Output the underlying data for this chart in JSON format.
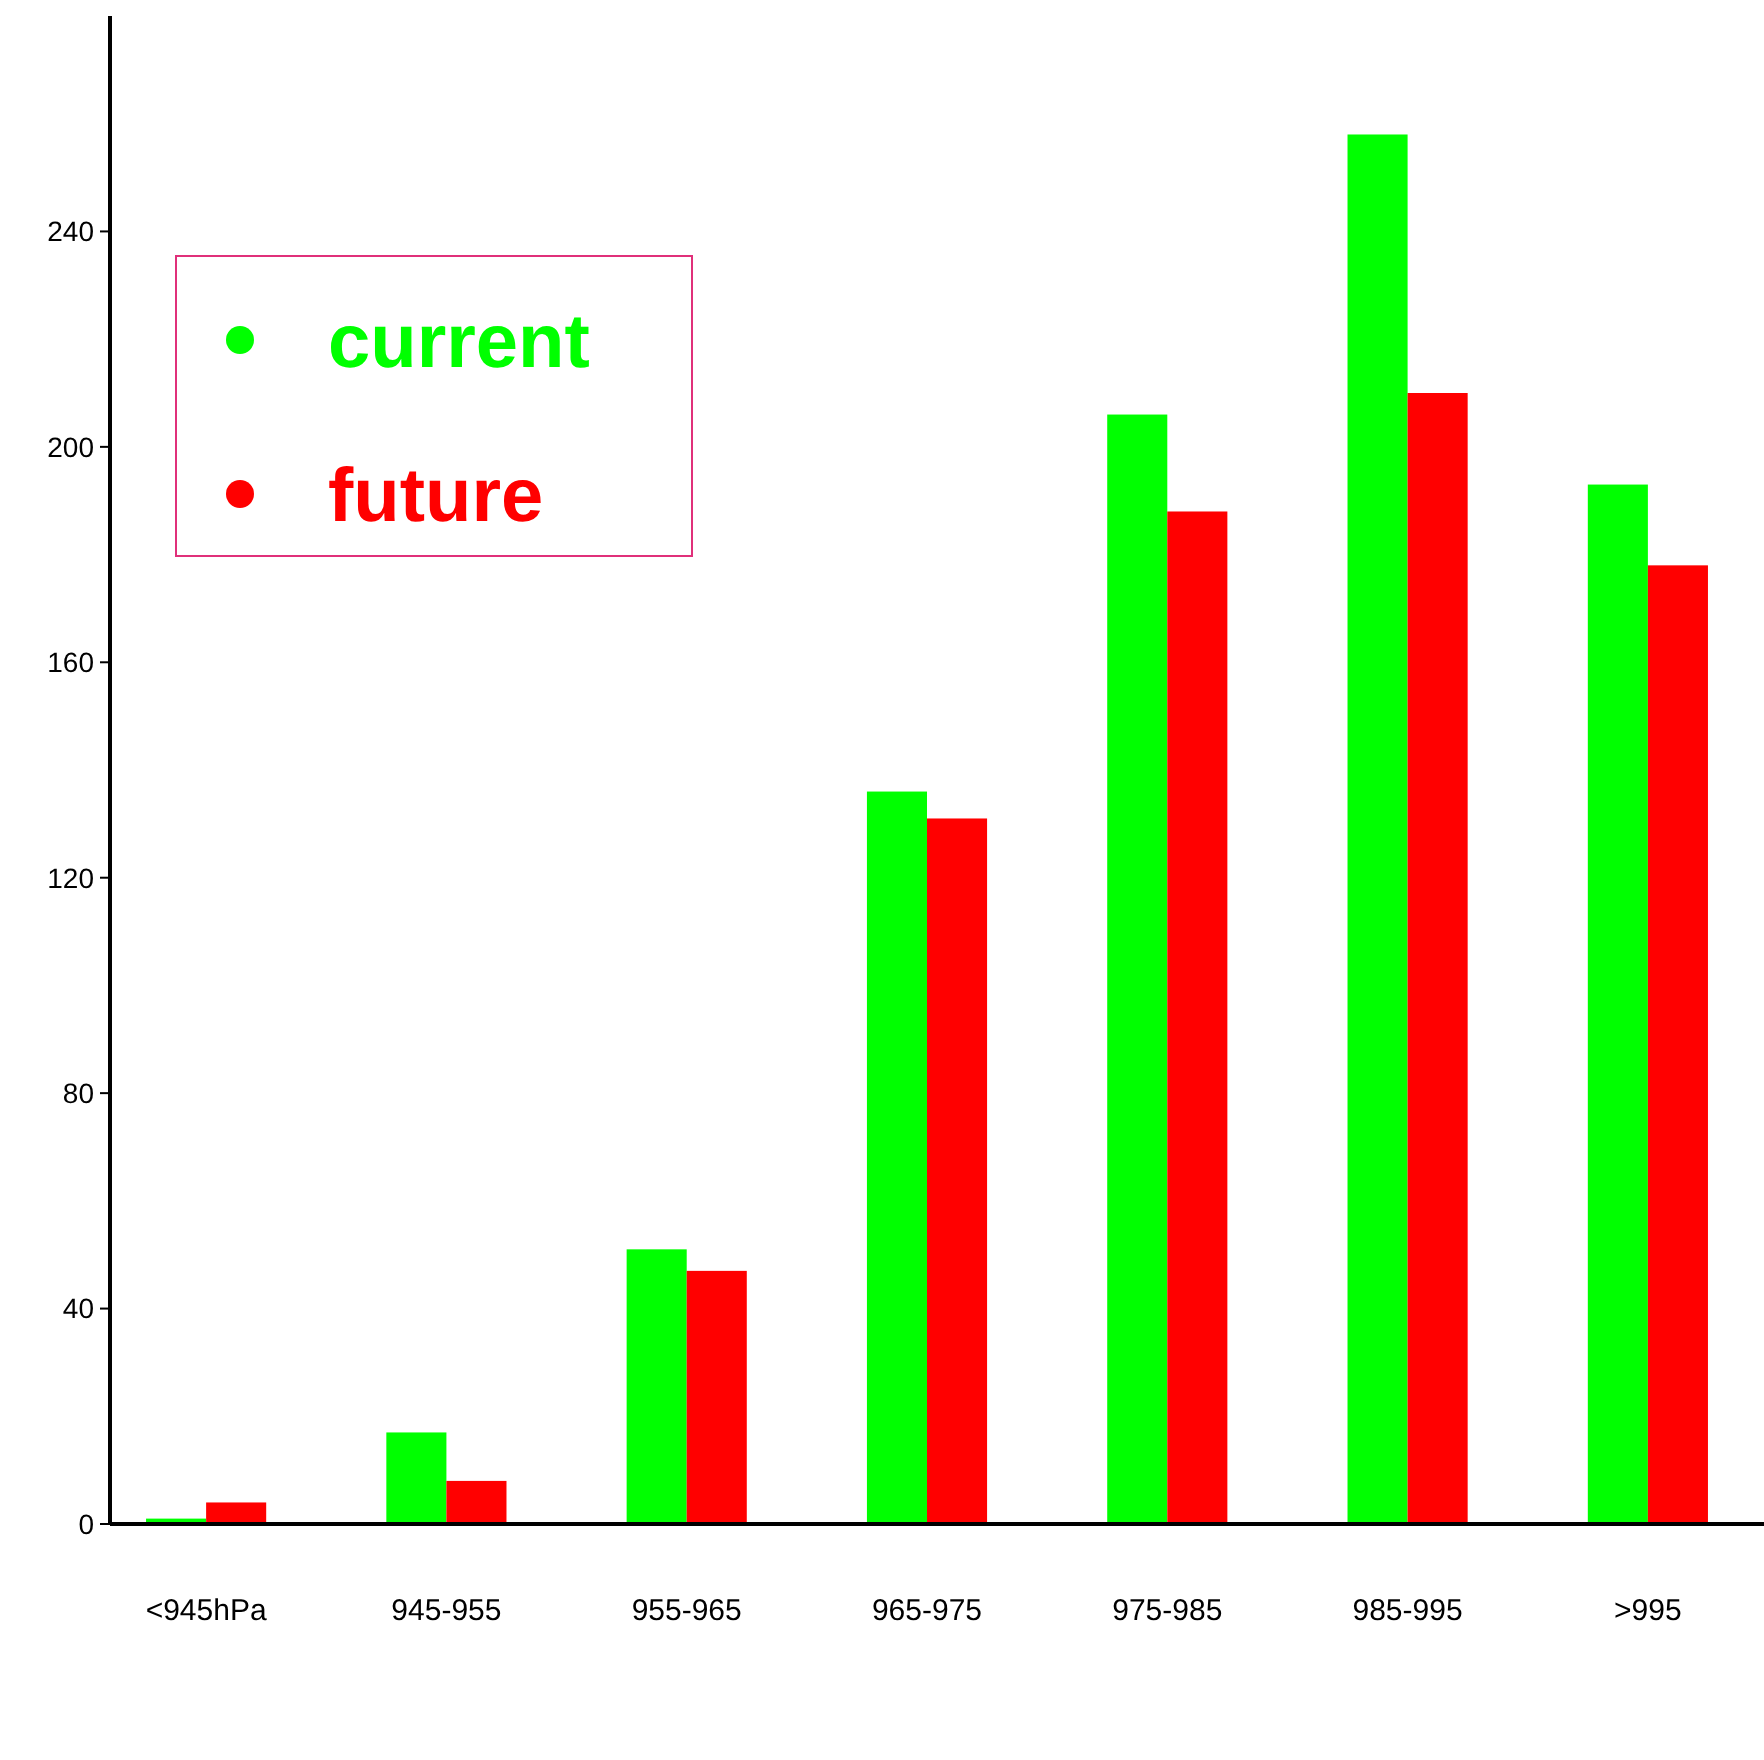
{
  "chart_data": {
    "type": "bar",
    "categories": [
      "<945hPa",
      "945-955",
      "955-965",
      "965-975",
      "975-985",
      "985-995",
      ">995"
    ],
    "series": [
      {
        "name": "current",
        "color": "#00ff00",
        "values": [
          1,
          17,
          51,
          136,
          206,
          258,
          193
        ]
      },
      {
        "name": "future",
        "color": "#ff0000",
        "values": [
          4,
          8,
          47,
          131,
          188,
          210,
          178
        ]
      }
    ],
    "ylim": [
      0,
      280
    ],
    "yticks": [
      0,
      40,
      80,
      120,
      160,
      200,
      240
    ],
    "grid": false,
    "legend": "top left"
  }
}
